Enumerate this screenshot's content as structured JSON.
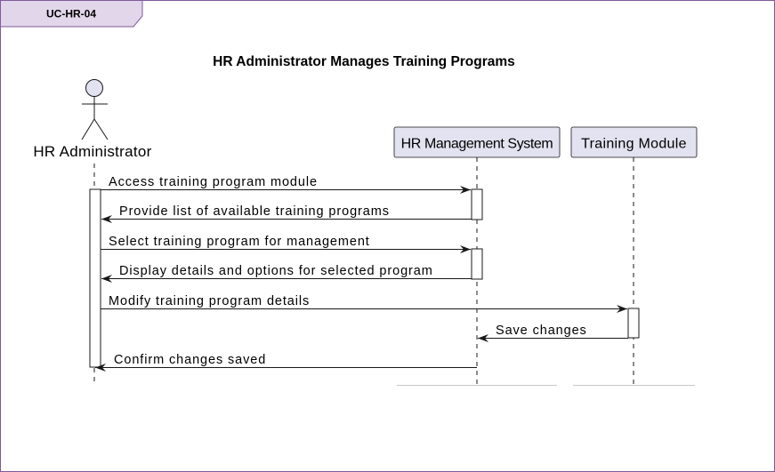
{
  "frame": {
    "tab_label": "UC-HR-04",
    "border_color": "#7f5a9b",
    "tab_fill": "#e2d6ea"
  },
  "diagram": {
    "title": "HR Administrator Manages Training Programs",
    "actor": {
      "label": "HR Administrator",
      "icon": "stick-figure-icon"
    },
    "participants": [
      {
        "id": "hrms",
        "label": "HR Management System"
      },
      {
        "id": "training",
        "label": "Training Module"
      }
    ],
    "colors": {
      "participant_fill": "#e2e2f0",
      "participant_border": "#181818",
      "lifeline": "#181818",
      "actor_head_fill": "#e2e2f0"
    },
    "messages": [
      {
        "label": "Access training program module",
        "from": "actor",
        "to": "hrms",
        "kind": "request"
      },
      {
        "label": "Provide list of available training programs",
        "from": "hrms",
        "to": "actor",
        "kind": "response"
      },
      {
        "label": "Select training program for management",
        "from": "actor",
        "to": "hrms",
        "kind": "request"
      },
      {
        "label": "Display details and options for selected program",
        "from": "hrms",
        "to": "actor",
        "kind": "response"
      },
      {
        "label": "Modify training program details",
        "from": "actor",
        "to": "training",
        "kind": "request"
      },
      {
        "label": "Save changes",
        "from": "training",
        "to": "hrms",
        "kind": "response"
      },
      {
        "label": "Confirm changes saved",
        "from": "hrms",
        "to": "actor",
        "kind": "response"
      }
    ]
  }
}
